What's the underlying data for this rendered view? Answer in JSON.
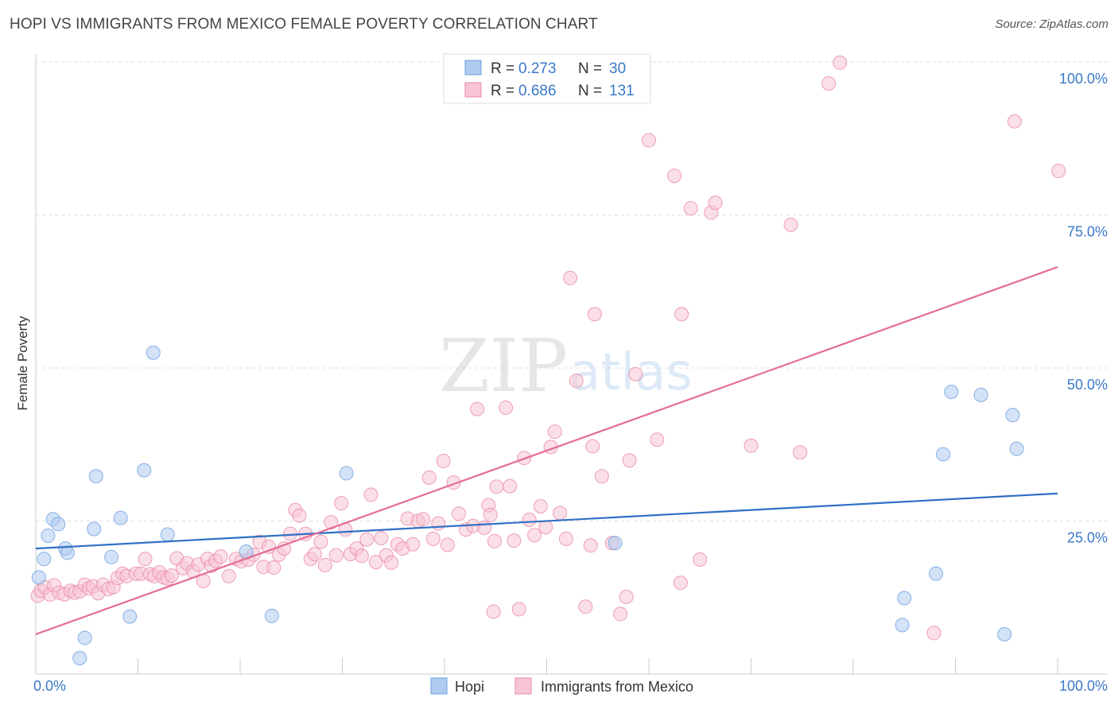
{
  "title": "HOPI VS IMMIGRANTS FROM MEXICO FEMALE POVERTY CORRELATION CHART",
  "source": "Source: ZipAtlas.com",
  "watermark": {
    "zip": "ZIP",
    "atlas": "atlas"
  },
  "colors": {
    "hopi_fill": "#aecbf0",
    "hopi_stroke": "#6d9fdc",
    "hopi_line": "#2f6fc4",
    "mexico_fill": "#f7c5d4",
    "mexico_stroke": "#e98aa8",
    "mexico_line": "#e46d94",
    "grid": "#dddddd",
    "axis_text": "#3a78c8"
  },
  "legend": {
    "rows": [
      {
        "series": "hopi",
        "r_label": "R =",
        "r_value": "0.273",
        "n_label": "N =",
        "n_value": "30"
      },
      {
        "series": "mexico",
        "r_label": "R =",
        "r_value": "0.686",
        "n_label": "N =",
        "n_value": "131"
      }
    ]
  },
  "bottom_legend": [
    "Hopi",
    "Immigrants from Mexico"
  ],
  "chart_data": {
    "type": "scatter",
    "title": "HOPI VS IMMIGRANTS FROM MEXICO FEMALE POVERTY CORRELATION CHART",
    "xlabel": "",
    "ylabel": "Female Poverty",
    "xlim": [
      0,
      100
    ],
    "ylim": [
      0,
      100
    ],
    "x_tick_labels": [
      "0.0%",
      "100.0%"
    ],
    "y_ticks": [
      25,
      50,
      75,
      100
    ],
    "y_tick_labels": [
      "25.0%",
      "50.0%",
      "75.0%",
      "100.0%"
    ],
    "grid": true,
    "series": [
      {
        "name": "Hopi",
        "key": "hopi",
        "r": 0.273,
        "n": 30,
        "trend": {
          "x": [
            0,
            100
          ],
          "y": [
            20.5,
            29.5
          ]
        },
        "points": [
          [
            0.3,
            15.8
          ],
          [
            0.8,
            18.8
          ],
          [
            1.2,
            22.6
          ],
          [
            1.7,
            25.3
          ],
          [
            2.2,
            24.5
          ],
          [
            2.9,
            20.5
          ],
          [
            3.1,
            19.8
          ],
          [
            4.8,
            5.9
          ],
          [
            4.3,
            2.6
          ],
          [
            5.7,
            23.7
          ],
          [
            5.9,
            32.3
          ],
          [
            7.4,
            19.1
          ],
          [
            8.3,
            25.5
          ],
          [
            9.2,
            9.4
          ],
          [
            10.6,
            33.3
          ],
          [
            11.5,
            52.5
          ],
          [
            12.9,
            22.8
          ],
          [
            20.6,
            20.0
          ],
          [
            23.1,
            9.5
          ],
          [
            30.4,
            32.8
          ],
          [
            56.7,
            21.4
          ],
          [
            84.8,
            8.0
          ],
          [
            85.0,
            12.4
          ],
          [
            88.1,
            16.4
          ],
          [
            88.8,
            35.9
          ],
          [
            89.6,
            46.1
          ],
          [
            92.5,
            45.6
          ],
          [
            94.8,
            6.5
          ],
          [
            95.6,
            42.3
          ],
          [
            96.0,
            36.8
          ]
        ]
      },
      {
        "name": "Immigrants from Mexico",
        "key": "mexico",
        "r": 0.686,
        "n": 131,
        "trend": {
          "x": [
            0,
            100
          ],
          "y": [
            6.5,
            66.5
          ]
        },
        "points": [
          [
            0.2,
            12.8
          ],
          [
            0.5,
            13.6
          ],
          [
            0.9,
            14.2
          ],
          [
            1.4,
            13.0
          ],
          [
            1.8,
            14.5
          ],
          [
            2.3,
            13.3
          ],
          [
            2.8,
            13.0
          ],
          [
            3.4,
            13.6
          ],
          [
            3.8,
            13.3
          ],
          [
            4.3,
            13.5
          ],
          [
            4.8,
            14.6
          ],
          [
            5.2,
            14.0
          ],
          [
            5.6,
            14.3
          ],
          [
            6.1,
            13.2
          ],
          [
            6.6,
            14.6
          ],
          [
            7.1,
            13.9
          ],
          [
            7.6,
            14.2
          ],
          [
            8.0,
            15.7
          ],
          [
            8.5,
            16.4
          ],
          [
            8.9,
            16.0
          ],
          [
            9.8,
            16.4
          ],
          [
            10.3,
            16.4
          ],
          [
            10.7,
            18.8
          ],
          [
            11.2,
            16.3
          ],
          [
            11.6,
            16.0
          ],
          [
            12.1,
            16.6
          ],
          [
            12.5,
            15.8
          ],
          [
            12.9,
            15.6
          ],
          [
            13.3,
            16.1
          ],
          [
            13.8,
            18.9
          ],
          [
            14.4,
            17.3
          ],
          [
            14.8,
            18.1
          ],
          [
            15.4,
            16.8
          ],
          [
            15.9,
            17.9
          ],
          [
            16.4,
            15.2
          ],
          [
            16.8,
            18.8
          ],
          [
            17.2,
            17.7
          ],
          [
            17.6,
            18.5
          ],
          [
            18.1,
            19.2
          ],
          [
            18.9,
            16.0
          ],
          [
            19.6,
            18.8
          ],
          [
            20.1,
            18.4
          ],
          [
            20.8,
            18.7
          ],
          [
            21.3,
            19.5
          ],
          [
            21.9,
            21.6
          ],
          [
            22.3,
            17.5
          ],
          [
            22.8,
            20.8
          ],
          [
            23.3,
            17.4
          ],
          [
            23.8,
            19.5
          ],
          [
            24.3,
            20.5
          ],
          [
            24.9,
            22.9
          ],
          [
            25.4,
            26.8
          ],
          [
            25.8,
            25.9
          ],
          [
            26.4,
            22.9
          ],
          [
            26.9,
            18.8
          ],
          [
            27.3,
            19.6
          ],
          [
            27.9,
            21.6
          ],
          [
            28.3,
            17.8
          ],
          [
            28.9,
            24.8
          ],
          [
            29.4,
            19.4
          ],
          [
            29.9,
            27.9
          ],
          [
            30.3,
            23.6
          ],
          [
            30.8,
            19.6
          ],
          [
            31.4,
            20.5
          ],
          [
            31.9,
            19.3
          ],
          [
            32.4,
            22.0
          ],
          [
            32.8,
            29.3
          ],
          [
            33.3,
            18.3
          ],
          [
            33.8,
            22.2
          ],
          [
            34.3,
            19.4
          ],
          [
            34.8,
            18.2
          ],
          [
            35.4,
            21.2
          ],
          [
            35.9,
            20.5
          ],
          [
            36.4,
            25.4
          ],
          [
            36.9,
            21.2
          ],
          [
            37.4,
            25.0
          ],
          [
            37.9,
            25.3
          ],
          [
            38.5,
            32.1
          ],
          [
            38.9,
            22.1
          ],
          [
            39.4,
            24.6
          ],
          [
            39.9,
            34.8
          ],
          [
            40.3,
            21.1
          ],
          [
            40.9,
            31.3
          ],
          [
            41.4,
            26.2
          ],
          [
            42.1,
            23.6
          ],
          [
            42.8,
            24.2
          ],
          [
            43.2,
            43.3
          ],
          [
            43.9,
            23.9
          ],
          [
            44.3,
            27.6
          ],
          [
            44.8,
            10.2
          ],
          [
            44.9,
            21.7
          ],
          [
            44.5,
            26.0
          ],
          [
            45.1,
            30.6
          ],
          [
            46.0,
            43.5
          ],
          [
            46.4,
            30.7
          ],
          [
            46.8,
            21.8
          ],
          [
            47.3,
            10.6
          ],
          [
            47.8,
            35.3
          ],
          [
            48.3,
            25.2
          ],
          [
            48.8,
            22.7
          ],
          [
            49.4,
            27.4
          ],
          [
            49.9,
            24.0
          ],
          [
            50.4,
            37.1
          ],
          [
            50.8,
            39.6
          ],
          [
            51.3,
            26.3
          ],
          [
            51.9,
            22.1
          ],
          [
            52.3,
            64.7
          ],
          [
            52.9,
            47.9
          ],
          [
            53.8,
            11.0
          ],
          [
            54.3,
            21.0
          ],
          [
            54.5,
            37.2
          ],
          [
            54.7,
            58.8
          ],
          [
            55.4,
            32.3
          ],
          [
            56.4,
            21.4
          ],
          [
            57.2,
            9.8
          ],
          [
            57.8,
            12.6
          ],
          [
            58.1,
            34.9
          ],
          [
            58.7,
            49.0
          ],
          [
            60.0,
            87.2
          ],
          [
            60.8,
            38.3
          ],
          [
            62.5,
            81.4
          ],
          [
            63.1,
            14.9
          ],
          [
            63.2,
            58.8
          ],
          [
            64.1,
            76.1
          ],
          [
            65.0,
            18.7
          ],
          [
            66.1,
            75.4
          ],
          [
            66.5,
            77.0
          ],
          [
            70.0,
            37.3
          ],
          [
            73.9,
            73.4
          ],
          [
            74.8,
            36.2
          ],
          [
            77.6,
            96.5
          ],
          [
            78.7,
            99.9
          ],
          [
            87.9,
            6.7
          ],
          [
            95.8,
            90.3
          ],
          [
            100.1,
            82.2
          ]
        ]
      }
    ]
  }
}
